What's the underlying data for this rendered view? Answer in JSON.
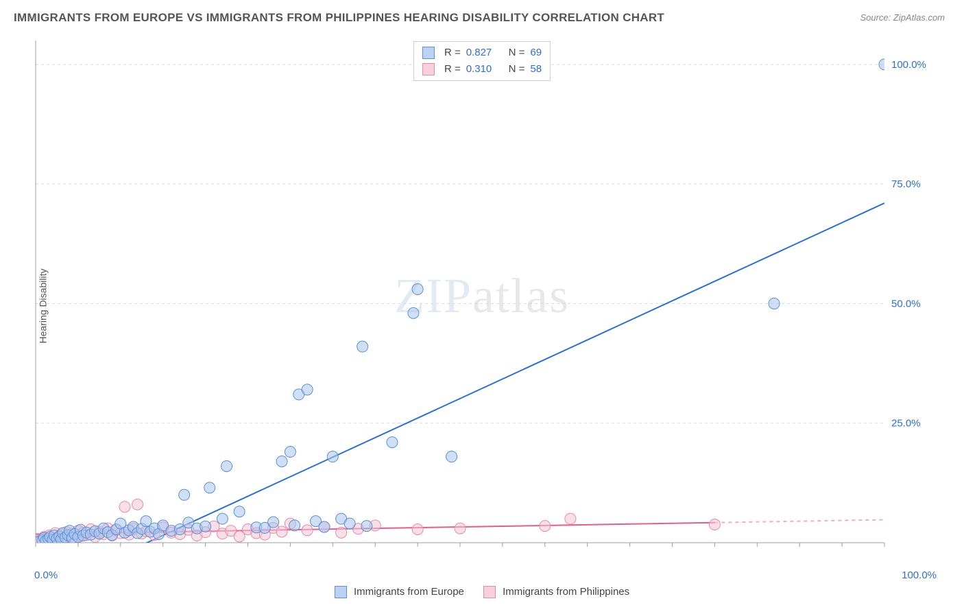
{
  "title": "IMMIGRANTS FROM EUROPE VS IMMIGRANTS FROM PHILIPPINES HEARING DISABILITY CORRELATION CHART",
  "source_label": "Source: ZipAtlas.com",
  "watermark": "ZIPatlas",
  "ylabel": "Hearing Disability",
  "chart": {
    "type": "scatter",
    "xlim": [
      0,
      100
    ],
    "ylim": [
      0,
      105
    ],
    "xtick_labels": {
      "min": "0.0%",
      "max": "100.0%"
    },
    "ytick_labels": [
      "25.0%",
      "50.0%",
      "75.0%",
      "100.0%"
    ],
    "ytick_values": [
      25,
      50,
      75,
      100
    ],
    "ytick_color": "#2a6fd6",
    "ytick_fontsize": 15,
    "grid_color": "#d9d9d9",
    "axis_color": "#9aa0a6",
    "tick_color": "#9aa0a6",
    "background_color": "#ffffff",
    "marker_radius": 8,
    "marker_opacity": 0.55,
    "line_width": 2,
    "series": [
      {
        "name": "Immigrants from Europe",
        "color_fill": "#a7c5ee",
        "color_stroke": "#5a8fd6",
        "swatch_fill": "#bcd2f0",
        "swatch_border": "#5a8fd6",
        "R": "0.827",
        "N": "69",
        "trend": {
          "x1": 7,
          "y1": -5,
          "x2": 100,
          "y2": 71,
          "color": "#2a6fd6"
        },
        "points": [
          [
            0.5,
            0.3
          ],
          [
            0.8,
            0.5
          ],
          [
            1,
            1
          ],
          [
            1.2,
            0.4
          ],
          [
            1.5,
            0.8
          ],
          [
            1.7,
            1.2
          ],
          [
            2,
            0.6
          ],
          [
            2.2,
            1.5
          ],
          [
            2.5,
            0.9
          ],
          [
            2.8,
            1.3
          ],
          [
            3,
            0.7
          ],
          [
            3.2,
            2
          ],
          [
            3.5,
            1.1
          ],
          [
            3.8,
            1.6
          ],
          [
            4,
            2.5
          ],
          [
            4.3,
            1.0
          ],
          [
            4.6,
            1.8
          ],
          [
            5,
            1.2
          ],
          [
            5.3,
            2.7
          ],
          [
            5.6,
            1.5
          ],
          [
            6,
            2.1
          ],
          [
            6.5,
            1.7
          ],
          [
            7,
            2.4
          ],
          [
            7.5,
            1.9
          ],
          [
            8,
            3
          ],
          [
            8.5,
            2.2
          ],
          [
            9,
            1.6
          ],
          [
            9.5,
            2.8
          ],
          [
            10,
            4
          ],
          [
            10.5,
            2.1
          ],
          [
            11,
            2.6
          ],
          [
            11.5,
            3.3
          ],
          [
            12,
            2.0
          ],
          [
            12.5,
            2.9
          ],
          [
            13,
            4.5
          ],
          [
            13.5,
            2.3
          ],
          [
            14,
            3.0
          ],
          [
            14.5,
            1.8
          ],
          [
            15,
            3.6
          ],
          [
            16,
            2.5
          ],
          [
            17,
            2.8
          ],
          [
            17.5,
            10
          ],
          [
            18,
            4.2
          ],
          [
            19,
            3
          ],
          [
            20,
            3.4
          ],
          [
            20.5,
            11.5
          ],
          [
            22,
            5
          ],
          [
            22.5,
            16
          ],
          [
            24,
            6.5
          ],
          [
            26,
            3.2
          ],
          [
            27,
            3.1
          ],
          [
            28,
            4.3
          ],
          [
            29,
            17
          ],
          [
            30,
            19
          ],
          [
            30.5,
            3.6
          ],
          [
            31,
            31
          ],
          [
            32,
            32
          ],
          [
            33,
            4.5
          ],
          [
            34,
            3.3
          ],
          [
            35,
            18
          ],
          [
            36,
            5
          ],
          [
            37,
            4
          ],
          [
            38.5,
            41
          ],
          [
            39,
            3.5
          ],
          [
            42,
            21
          ],
          [
            44.5,
            48
          ],
          [
            45,
            53
          ],
          [
            49,
            18
          ],
          [
            87,
            50
          ],
          [
            100,
            100
          ]
        ]
      },
      {
        "name": "Immigrants from Philippines",
        "color_fill": "#f4c5d3",
        "color_stroke": "#e68aa6",
        "swatch_fill": "#f7d0de",
        "swatch_border": "#e68aa6",
        "R": "0.310",
        "N": "58",
        "trend": {
          "x1": 0,
          "y1": 1.8,
          "x2": 80,
          "y2": 4.2,
          "x2_dash": 100,
          "y2_dash": 4.8,
          "color": "#e85a8a"
        },
        "points": [
          [
            0.5,
            0.5
          ],
          [
            1,
            1.2
          ],
          [
            1.3,
            0.6
          ],
          [
            1.6,
            1.5
          ],
          [
            2,
            0.9
          ],
          [
            2.3,
            2.0
          ],
          [
            2.6,
            1.1
          ],
          [
            3,
            1.7
          ],
          [
            3.3,
            0.8
          ],
          [
            3.6,
            2.2
          ],
          [
            4,
            1.3
          ],
          [
            4.3,
            1.9
          ],
          [
            4.6,
            1.0
          ],
          [
            5,
            2.5
          ],
          [
            5.3,
            1.4
          ],
          [
            5.6,
            2.1
          ],
          [
            6,
            1.6
          ],
          [
            6.5,
            2.8
          ],
          [
            7,
            1.2
          ],
          [
            7.5,
            2.3
          ],
          [
            8,
            1.8
          ],
          [
            8.5,
            3.0
          ],
          [
            9,
            1.5
          ],
          [
            9.5,
            2.6
          ],
          [
            10,
            2.0
          ],
          [
            10.5,
            7.5
          ],
          [
            11,
            1.7
          ],
          [
            11.5,
            2.9
          ],
          [
            12,
            8
          ],
          [
            12.5,
            1.9
          ],
          [
            13,
            2.4
          ],
          [
            14,
            1.6
          ],
          [
            15,
            3.2
          ],
          [
            16,
            2.1
          ],
          [
            17,
            1.8
          ],
          [
            18,
            2.7
          ],
          [
            19,
            1.5
          ],
          [
            20,
            2.2
          ],
          [
            21,
            3.4
          ],
          [
            22,
            1.9
          ],
          [
            23,
            2.5
          ],
          [
            24,
            1.3
          ],
          [
            25,
            2.8
          ],
          [
            26,
            2.0
          ],
          [
            27,
            1.7
          ],
          [
            28,
            3.1
          ],
          [
            29,
            2.3
          ],
          [
            30,
            4.0
          ],
          [
            32,
            2.6
          ],
          [
            34,
            3.3
          ],
          [
            36,
            2.1
          ],
          [
            38,
            2.9
          ],
          [
            40,
            3.6
          ],
          [
            45,
            2.8
          ],
          [
            50,
            3.0
          ],
          [
            60,
            3.5
          ],
          [
            63,
            5
          ],
          [
            80,
            3.8
          ]
        ]
      }
    ]
  },
  "legend": {
    "series1_label": "Immigrants from Europe",
    "series2_label": "Immigrants from Philippines"
  }
}
